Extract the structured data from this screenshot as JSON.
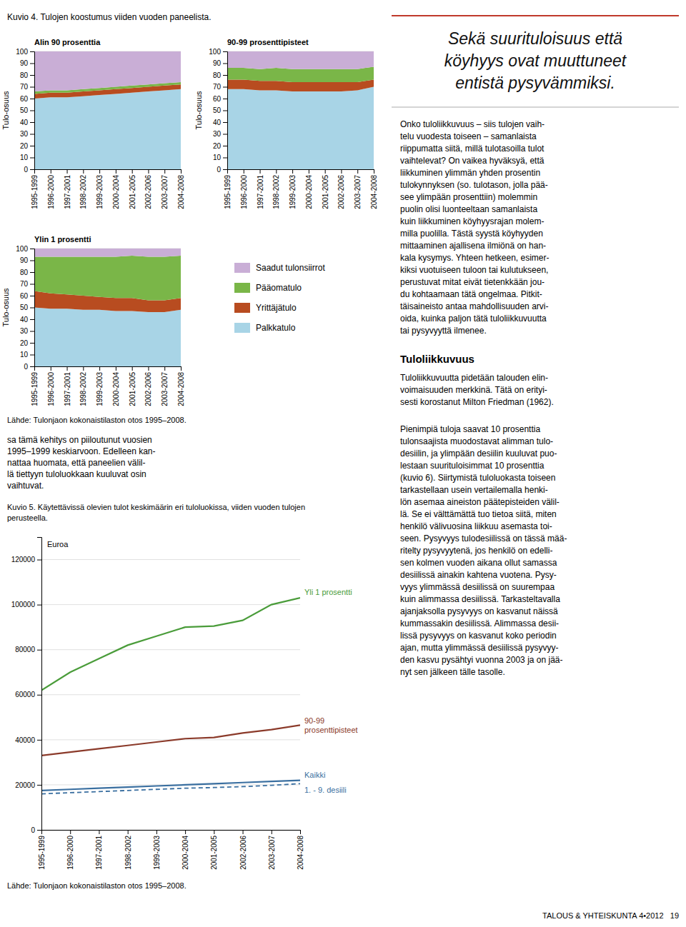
{
  "chart_data": [
    {
      "type": "area",
      "stacked": true,
      "grid": true,
      "title": "Alin 90 prosenttia",
      "y_label": "Tulo-osuus",
      "categories": [
        "1995-1999",
        "1996-2000",
        "1997-2001",
        "1998-2002",
        "1999-2003",
        "2000-2004",
        "2001-2005",
        "2002-2006",
        "2003-2007",
        "2004-2008"
      ],
      "ylim": [
        0,
        100
      ],
      "yticks": [
        0,
        10,
        20,
        30,
        40,
        50,
        60,
        70,
        80,
        90,
        100
      ],
      "series": [
        {
          "name": "Palkkatulo",
          "color": "#a8d4e6",
          "values": [
            60,
            61,
            61,
            62,
            63,
            64,
            65,
            66,
            67,
            68
          ]
        },
        {
          "name": "Yrittäjätulo",
          "color": "#b84c20",
          "values": [
            4,
            4,
            4,
            4,
            4,
            4,
            4,
            4,
            4,
            4
          ]
        },
        {
          "name": "Pääomatulo",
          "color": "#7ab648",
          "values": [
            2,
            2,
            2,
            2,
            2,
            2,
            2,
            2,
            2,
            2
          ]
        },
        {
          "name": "Saadut tulonsiirrot",
          "color": "#c9aed6",
          "values": [
            34,
            33,
            33,
            32,
            31,
            30,
            29,
            28,
            27,
            26
          ]
        }
      ]
    },
    {
      "type": "area",
      "stacked": true,
      "grid": true,
      "title": "90-99 prosenttipisteet",
      "y_label": "Tulo-osuus",
      "categories": [
        "1995-1999",
        "1996-2000",
        "1997-2001",
        "1998-2002",
        "1999-2003",
        "2000-2004",
        "2001-2005",
        "2002-2006",
        "2003-2007",
        "2004-2008"
      ],
      "ylim": [
        0,
        100
      ],
      "yticks": [
        0,
        10,
        20,
        30,
        40,
        50,
        60,
        70,
        80,
        90,
        100
      ],
      "series": [
        {
          "name": "Palkkatulo",
          "color": "#a8d4e6",
          "values": [
            68,
            68,
            67,
            67,
            66,
            66,
            66,
            66,
            67,
            70
          ]
        },
        {
          "name": "Yrittäjätulo",
          "color": "#b84c20",
          "values": [
            8,
            8,
            8,
            8,
            8,
            8,
            8,
            8,
            7,
            6
          ]
        },
        {
          "name": "Pääomatulo",
          "color": "#7ab648",
          "values": [
            10,
            10,
            10,
            11,
            11,
            11,
            11,
            11,
            11,
            11
          ]
        },
        {
          "name": "Saadut tulonsiirrot",
          "color": "#c9aed6",
          "values": [
            14,
            14,
            15,
            14,
            15,
            15,
            15,
            15,
            15,
            13
          ]
        }
      ]
    },
    {
      "type": "area",
      "stacked": true,
      "grid": true,
      "legend": "right",
      "title": "Ylin 1 prosentti",
      "y_label": "Tulo-osuus",
      "categories": [
        "1995-1999",
        "1996-2000",
        "1997-2001",
        "1998-2002",
        "1999-2003",
        "2000-2004",
        "2001-2005",
        "2002-2006",
        "2003-2007",
        "2004-2008"
      ],
      "ylim": [
        0,
        100
      ],
      "yticks": [
        0,
        10,
        20,
        30,
        40,
        50,
        60,
        70,
        80,
        90,
        100
      ],
      "series": [
        {
          "name": "Palkkatulo",
          "color": "#a8d4e6",
          "values": [
            50,
            49,
            49,
            48,
            48,
            47,
            47,
            46,
            46,
            48
          ]
        },
        {
          "name": "Yrittäjätulo",
          "color": "#b84c20",
          "values": [
            14,
            13,
            12,
            12,
            11,
            11,
            11,
            10,
            10,
            10
          ]
        },
        {
          "name": "Pääomatulo",
          "color": "#7ab648",
          "values": [
            29,
            31,
            32,
            33,
            34,
            35,
            36,
            37,
            37,
            36
          ]
        },
        {
          "name": "Saadut tulonsiirrot",
          "color": "#c9aed6",
          "values": [
            7,
            7,
            7,
            7,
            7,
            7,
            6,
            7,
            7,
            6
          ]
        }
      ]
    },
    {
      "type": "line",
      "grid": true,
      "title": "Kuvio 5. Käytettävissä olevien tulot keskimäärin eri tuloluokissa, viiden vuoden tulojen\nperusteella.",
      "y_label": "Euroa",
      "annotations": [
        "Lähde: Tulonjaon kokonaistilaston otos 1995–2008."
      ],
      "categories": [
        "1995-1999",
        "1996-2000",
        "1997-2001",
        "1998-2002",
        "1999-2003",
        "2000-2004",
        "2001-2005",
        "2002-2006",
        "2003-2007",
        "2004-2008"
      ],
      "ylim": [
        0,
        130000
      ],
      "yticks": [
        0,
        20000,
        40000,
        60000,
        80000,
        100000,
        120000
      ],
      "series": [
        {
          "name": "Yli 1 prosentti",
          "color": "#4a9c3a",
          "line_style": "solid",
          "values": [
            62000,
            70000,
            76000,
            82000,
            86000,
            90000,
            90500,
            93000,
            100000,
            103000
          ]
        },
        {
          "name": "90-99\nprosenttipisteet",
          "color": "#8b3a2a",
          "line_style": "solid",
          "values": [
            33000,
            34500,
            36000,
            37500,
            39000,
            40500,
            41000,
            43000,
            44500,
            46500
          ]
        },
        {
          "name": "Kaikki",
          "color": "#3a6fa0",
          "line_style": "solid",
          "values": [
            17500,
            18000,
            18500,
            19000,
            19500,
            20000,
            20500,
            21000,
            21500,
            22000
          ]
        },
        {
          "name": "1. - 9. desiili",
          "color": "#3a6fa0",
          "line_style": "dashed",
          "values": [
            16000,
            16500,
            17000,
            17500,
            18000,
            18500,
            18800,
            19200,
            19800,
            20500
          ]
        }
      ]
    }
  ],
  "page": {
    "figure_title": "Kuvio 4. Tulojen koostumus viiden vuoden paneelista.",
    "source": "Lähde: Tulonjaon kokonaistilaston otos 1995–2008.",
    "heading": "Sekä suurituloisuus että\nköyhyys ovat muuttuneet\nentistä pysyvämmiksi.",
    "section_heading": "Tuloliikkuvuus",
    "paragraphs": [
      "sa tämä kehitys on piiloutunut vuosien\n1995–1999 keskiarvoon. Edelleen kan-\nnattaa huomata, että paneelien välil-\nlä tiettyyn tuloluokkaan kuuluvat osin\nvaihtuvat.",
      "Onko tuloliikkuvuus – siis tulojen vaih-\ntelu vuodesta toiseen – samanlaista\nriippumatta siitä, millä tulotasoilla tulot\nvaihtelevat? On vaikea hyväksyä, että\nliikkuminen ylimmän yhden prosentin\ntulokynnyksen (so. tulotason, jolla pää-\nsee ylimpään prosenttiin) molemmin\npuolin olisi luonteeltaan samanlaista\nkuin liikkuminen köyhyysrajan molem-\nmilla puolilla. Tästä syystä köyhyyden\nmittaaminen ajallisena ilmiönä on han-\nkala kysymys. Yhteen hetkeen, esimer-\nkiksi vuotuiseen tuloon tai kulutukseen,\nperustuvat mitat eivät tietenkkään jou-\ndu kohtaamaan tätä ongelmaa. Pitkit-\ntäisaineisto antaa mahdollisuuden arvi-\noida, kuinka paljon tätä tuloliikkuvuutta\ntai pysyvyyttä ilmenee.",
      "Tuloliikkuvuutta pidetään talouden elin-\nvoimaisuuden merkkinä. Tätä on erityi-\nsesti korostanut Milton Friedman (1962).",
      "Pienimpiä tuloja saavat 10 prosenttia\ntulonsaajista muodostavat alimman tulo-\ndesiilin, ja ylimpään desiilin kuuluvat puo-\nlestaan suurituloisimmat 10 prosenttia\n(kuvio 6). Siirtymistä tuloluokasta toiseen\ntarkastellaan usein vertailemalla henki-\nlön asemaa aineiston päätepisteiden välil-\nlä. Se ei välttämättä tuo tietoa siitä, miten\nhenkilö välivuosina liikkuu asemasta toi-\nseen. Pysyvyys tulodesiilissä on tässä mää-\nritelty pysyvyytenä, jos henkilö on edelli-\nsen kolmen vuoden aikana ollut samassa\ndesiilissä ainakin kahtena vuotena. Pysy-\nvyys ylimmässä desiilissä on suurempaa\nkuin alimmassa desiilissä. Tarkasteltavalla\najanjaksolla pysyvyys on kasvanut näissä\nkummassakin desiilissä. Alimmassa desii-\nlissä pysyvyys on kasvanut koko periodin\najan, mutta ylimmässä desiilissä pysyvyy-\nden kasvu pysähtyi vuonna 2003 ja on jää-\nnyt sen jälkeen tälle tasolle."
    ],
    "footer": "TALOUS & YHTEISKUNTA 4•2012   19"
  }
}
